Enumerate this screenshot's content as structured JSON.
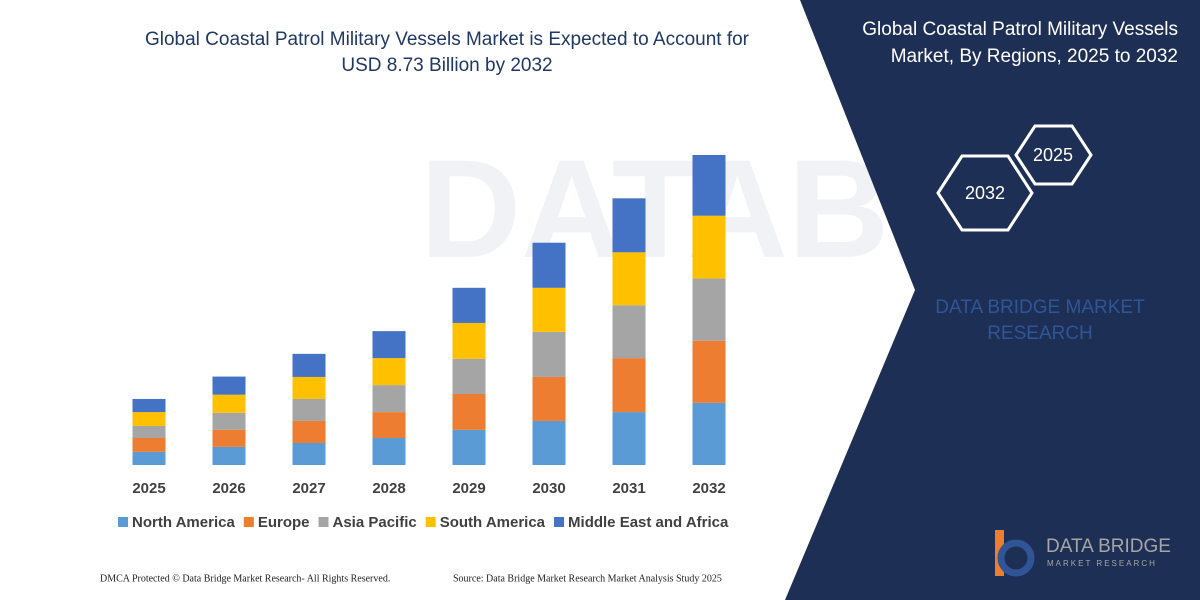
{
  "chart_data": {
    "type": "bar",
    "stacked": true,
    "title": [
      "Global Coastal Patrol Military Vessels Market is Expected to Account for",
      "USD 8.73 Billion by 2032"
    ],
    "categories": [
      "2025",
      "2026",
      "2027",
      "2028",
      "2029",
      "2030",
      "2031",
      "2032"
    ],
    "series": [
      {
        "name": "North America",
        "color": "#5b9bd5",
        "values": [
          0.37,
          0.51,
          0.62,
          0.76,
          0.99,
          1.24,
          1.49,
          1.75
        ]
      },
      {
        "name": "Europe",
        "color": "#ed7d31",
        "values": [
          0.39,
          0.48,
          0.62,
          0.73,
          1.01,
          1.24,
          1.52,
          1.75
        ]
      },
      {
        "name": "Asia Pacific",
        "color": "#a5a5a5",
        "values": [
          0.34,
          0.48,
          0.62,
          0.76,
          0.99,
          1.27,
          1.49,
          1.75
        ]
      },
      {
        "name": "South America",
        "color": "#ffc000",
        "values": [
          0.39,
          0.51,
          0.62,
          0.76,
          1.01,
          1.24,
          1.49,
          1.77
        ]
      },
      {
        "name": "Middle East and Africa",
        "color": "#4472c4",
        "values": [
          0.37,
          0.51,
          0.65,
          0.76,
          0.99,
          1.27,
          1.52,
          1.71
        ]
      }
    ]
  },
  "side_panel": {
    "title": [
      "Global Coastal Patrol Military Vessels",
      "Market, By Regions, 2025 to 2032"
    ],
    "hexagons": [
      "2025",
      "2032"
    ],
    "brand": [
      "DATA BRIDGE MARKET",
      "RESEARCH"
    ]
  },
  "logo": {
    "name": "DATA BRIDGE",
    "tagline": "MARKET RESEARCH"
  },
  "footer": {
    "rights": "DMCA Protected © Data Bridge Market Research- All Rights Reserved.",
    "source": "Source: Data Bridge Market Research  Market Analysis Study 2025"
  }
}
